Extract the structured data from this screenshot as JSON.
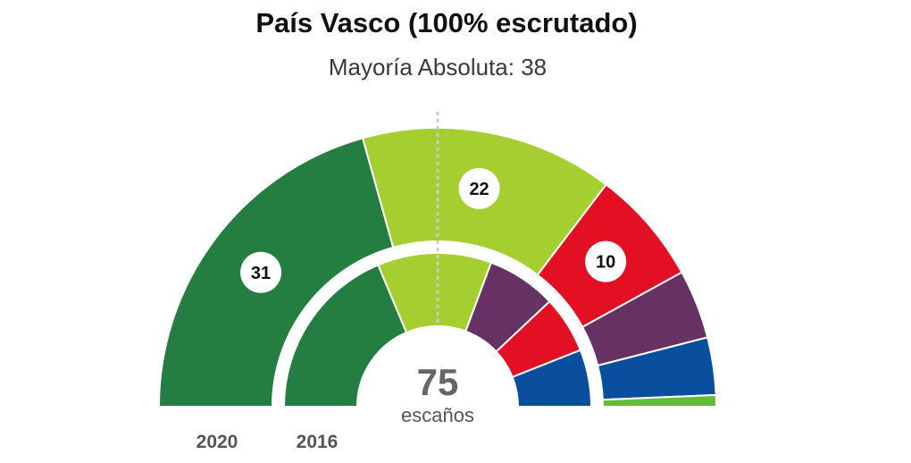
{
  "header": {
    "title": "País Vasco (100% escrutado)",
    "subtitle": "Mayoría Absoluta: 38"
  },
  "chart_data": {
    "type": "hemicycle",
    "title": "País Vasco (100% escrutado)",
    "subtitle": "Mayoría Absoluta: 38",
    "total_seats": 75,
    "majority": 38,
    "center_value": "75",
    "center_label": "escaños",
    "rings": [
      {
        "label": "2020",
        "seats": [
          {
            "seats": 31,
            "color": "#257e41",
            "label": "31"
          },
          {
            "seats": 22,
            "color": "#a5ce31",
            "label": "22"
          },
          {
            "seats": 10,
            "color": "#e30f23",
            "label": "10"
          },
          {
            "seats": 6,
            "color": "#663163",
            "label": ""
          },
          {
            "seats": 5,
            "color": "#0a4f9e",
            "label": ""
          },
          {
            "seats": 1,
            "color": "#65bb36",
            "label": ""
          }
        ]
      },
      {
        "label": "2016",
        "seats": [
          {
            "seats": 28,
            "color": "#257e41",
            "label": ""
          },
          {
            "seats": 18,
            "color": "#a5ce31",
            "label": ""
          },
          {
            "seats": 11,
            "color": "#663163",
            "label": ""
          },
          {
            "seats": 9,
            "color": "#e30f23",
            "label": ""
          },
          {
            "seats": 9,
            "color": "#0a4f9e",
            "label": ""
          }
        ]
      }
    ]
  }
}
